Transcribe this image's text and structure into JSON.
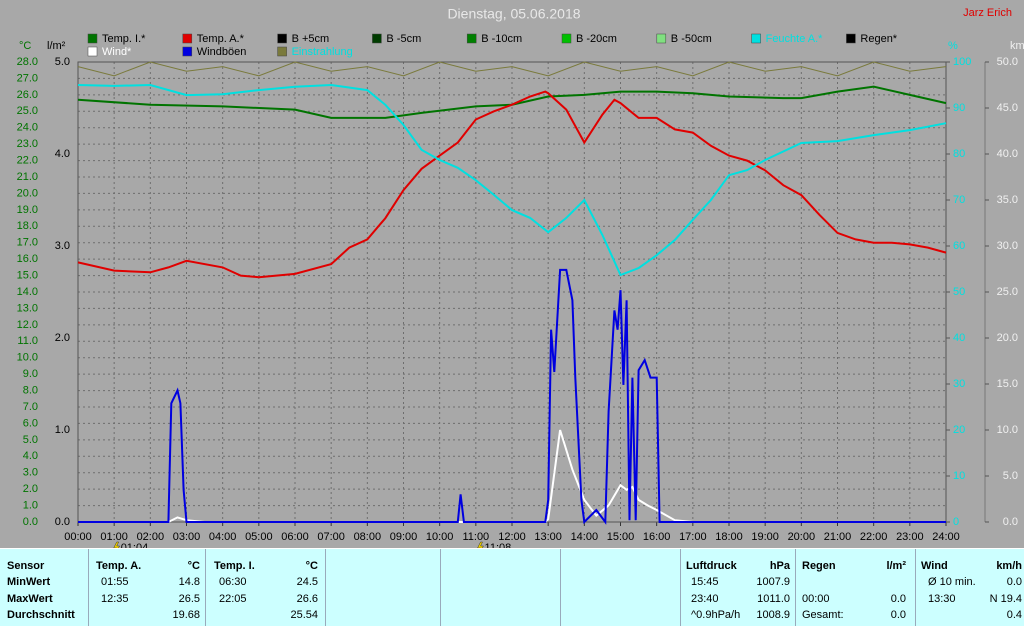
{
  "chart_data": {
    "type": "line",
    "title": "Dienstag, 05.06.2018",
    "author": "Jarz Erich",
    "y_label": "°C",
    "y2_label": "l/m²",
    "y3_label": "%",
    "y4_label": "km/h",
    "xlim": [
      0,
      24
    ],
    "xticks": [
      {
        "value": 0,
        "label": "00:00"
      },
      {
        "value": 1,
        "label": "01:00"
      },
      {
        "value": 2,
        "label": "02:00"
      },
      {
        "value": 3,
        "label": "03:00"
      },
      {
        "value": 4,
        "label": "04:00"
      },
      {
        "value": 5,
        "label": "05:00"
      },
      {
        "value": 6,
        "label": "06:00"
      },
      {
        "value": 7,
        "label": "07:00"
      },
      {
        "value": 8,
        "label": "08:00"
      },
      {
        "value": 9,
        "label": "09:00"
      },
      {
        "value": 10,
        "label": "10:00"
      },
      {
        "value": 11,
        "label": "11:00"
      },
      {
        "value": 12,
        "label": "12:00"
      },
      {
        "value": 13,
        "label": "13:00"
      },
      {
        "value": 14,
        "label": "14:00"
      },
      {
        "value": 15,
        "label": "15:00"
      },
      {
        "value": 16,
        "label": "16:00"
      },
      {
        "value": 17,
        "label": "17:00"
      },
      {
        "value": 18,
        "label": "18:00"
      },
      {
        "value": 19,
        "label": "19:00"
      },
      {
        "value": 20,
        "label": "20:00"
      },
      {
        "value": 21,
        "label": "21:00"
      },
      {
        "value": 22,
        "label": "22:00"
      },
      {
        "value": 23,
        "label": "23:00"
      },
      {
        "value": 24,
        "label": "24:00"
      }
    ],
    "ylim": [
      0,
      28
    ],
    "yticks": [
      {
        "value": 0,
        "label": "0.0"
      },
      {
        "value": 1,
        "label": "1.0"
      },
      {
        "value": 2,
        "label": "2.0"
      },
      {
        "value": 3,
        "label": "3.0"
      },
      {
        "value": 4,
        "label": "4.0"
      },
      {
        "value": 5,
        "label": "5.0"
      },
      {
        "value": 6,
        "label": "6.0"
      },
      {
        "value": 7,
        "label": "7.0"
      },
      {
        "value": 8,
        "label": "8.0"
      },
      {
        "value": 9,
        "label": "9.0"
      },
      {
        "value": 10,
        "label": "10.0"
      },
      {
        "value": 11,
        "label": "11.0"
      },
      {
        "value": 12,
        "label": "12.0"
      },
      {
        "value": 13,
        "label": "13.0"
      },
      {
        "value": 14,
        "label": "14.0"
      },
      {
        "value": 15,
        "label": "15.0"
      },
      {
        "value": 16,
        "label": "16.0"
      },
      {
        "value": 17,
        "label": "17.0"
      },
      {
        "value": 18,
        "label": "18.0"
      },
      {
        "value": 19,
        "label": "19.0"
      },
      {
        "value": 20,
        "label": "20.0"
      },
      {
        "value": 21,
        "label": "21.0"
      },
      {
        "value": 22,
        "label": "22.0"
      },
      {
        "value": 23,
        "label": "23.0"
      },
      {
        "value": 24,
        "label": "24.0"
      },
      {
        "value": 25,
        "label": "25.0"
      },
      {
        "value": 26,
        "label": "26.0"
      },
      {
        "value": 27,
        "label": "27.0"
      },
      {
        "value": 28,
        "label": "28.0"
      }
    ],
    "y2lim": [
      0,
      5
    ],
    "y2ticks": [
      {
        "value": 0,
        "label": "0.0"
      },
      {
        "value": 1,
        "label": "1.0"
      },
      {
        "value": 2,
        "label": "2.0"
      },
      {
        "value": 3,
        "label": "3.0"
      },
      {
        "value": 4,
        "label": "4.0"
      },
      {
        "value": 5,
        "label": "5.0"
      }
    ],
    "y3lim": [
      0,
      100
    ],
    "y3ticks": [
      0,
      10,
      20,
      30,
      40,
      50,
      60,
      70,
      80,
      90,
      100
    ],
    "y4lim": [
      0,
      50
    ],
    "y4ticks": [
      {
        "value": 0,
        "label": "0.0"
      },
      {
        "value": 5,
        "label": "5.0"
      },
      {
        "value": 10,
        "label": "10.0"
      },
      {
        "value": 15,
        "label": "15.0"
      },
      {
        "value": 20,
        "label": "20.0"
      },
      {
        "value": 25,
        "label": "25.0"
      },
      {
        "value": 30,
        "label": "30.0"
      },
      {
        "value": 35,
        "label": "35.0"
      },
      {
        "value": 40,
        "label": "40.0"
      },
      {
        "value": 45,
        "label": "45.0"
      },
      {
        "value": 50,
        "label": "50.0"
      }
    ],
    "grid": true,
    "series": [
      {
        "name": "Temp. I.*",
        "color": "#007400",
        "axis": "y",
        "x": [
          0,
          2,
          4,
          6,
          7,
          8.5,
          9.5,
          11,
          12,
          13,
          14,
          15,
          16,
          17,
          18,
          19.5,
          20,
          21,
          22,
          23,
          24
        ],
        "values": [
          25.7,
          25.4,
          25.3,
          25.1,
          24.6,
          24.6,
          24.9,
          25.3,
          25.4,
          25.9,
          26.0,
          26.2,
          26.2,
          26.1,
          25.9,
          25.8,
          25.8,
          26.2,
          26.5,
          26.0,
          25.5
        ]
      },
      {
        "name": "Temp. A.*",
        "color": "#e00000",
        "axis": "y",
        "x": [
          0,
          1,
          2,
          2.5,
          3,
          4,
          4.5,
          5,
          6,
          7,
          7.5,
          8,
          8.5,
          9,
          9.5,
          10,
          10.5,
          11,
          11.5,
          12,
          12.5,
          12.92,
          13,
          13.5,
          14,
          14.5,
          14.83,
          15,
          15.5,
          16,
          16.5,
          17,
          17.5,
          18,
          18.5,
          19,
          19.5,
          20,
          20.5,
          21,
          21.5,
          22,
          22.5,
          23,
          23.5,
          24
        ],
        "values": [
          15.8,
          15.3,
          15.2,
          15.5,
          15.9,
          15.5,
          15.0,
          14.9,
          15.1,
          15.7,
          16.7,
          17.2,
          18.5,
          20.2,
          21.5,
          22.3,
          23.1,
          24.5,
          25.0,
          25.4,
          25.9,
          26.2,
          26.1,
          25.1,
          23.1,
          24.8,
          25.7,
          25.5,
          24.6,
          24.6,
          23.9,
          23.7,
          22.9,
          22.3,
          22.0,
          21.4,
          20.5,
          19.9,
          18.7,
          17.6,
          17.2,
          17.0,
          17.0,
          16.9,
          16.7,
          16.4
        ]
      },
      {
        "name": "B +5cm",
        "color": "#000000"
      },
      {
        "name": "B -5cm",
        "color": "#003c00"
      },
      {
        "name": "B -10cm",
        "color": "#008000"
      },
      {
        "name": "B -20cm",
        "color": "#00c000"
      },
      {
        "name": "B -50cm",
        "color": "#80e080"
      },
      {
        "name": "Feuchte A.*",
        "color": "#00e0e0",
        "label_color": "#00e0e0",
        "axis": "y3",
        "x": [
          0,
          1,
          2,
          3,
          4,
          5,
          6,
          7,
          8,
          8.5,
          9,
          9.5,
          10,
          10.5,
          11,
          11.5,
          12,
          12.5,
          13,
          13.5,
          14,
          14.5,
          15,
          15.5,
          16,
          16.5,
          17,
          17.5,
          18,
          18.5,
          19,
          20,
          21,
          22,
          23,
          24
        ],
        "values": [
          95,
          94.8,
          95,
          92.8,
          93,
          93.9,
          94.6,
          95,
          93.9,
          90.7,
          86.3,
          80.9,
          78.7,
          77,
          74.3,
          71.1,
          67.8,
          66.1,
          63,
          66.1,
          70,
          62.4,
          53.7,
          55.2,
          58,
          61.3,
          65.7,
          70,
          75.4,
          76.5,
          78.7,
          82.4,
          82.8,
          84.1,
          85.2,
          86.7
        ]
      },
      {
        "name": "Regen*",
        "color": "#000000"
      },
      {
        "name": "Wind*",
        "color": "#ffffff",
        "label_color": "#ffffff",
        "axis": "y4",
        "x": [
          0,
          2.5,
          2.75,
          3,
          3.5,
          12.92,
          13,
          13.33,
          13.67,
          14,
          14.33,
          14.67,
          15,
          15.17,
          15.33,
          15.5,
          15.75,
          16,
          16.5,
          17,
          24
        ],
        "values": [
          0,
          0,
          0.5,
          0.2,
          0,
          0,
          0.3,
          10,
          5.7,
          2.4,
          0.7,
          1.8,
          4.0,
          3.5,
          3.8,
          2.4,
          1.8,
          1.3,
          0.2,
          0,
          0
        ]
      },
      {
        "name": "Windböen",
        "color": "#0000e0",
        "axis": "y4",
        "x": [
          0,
          2.5,
          2.58,
          2.75,
          2.83,
          2.92,
          3,
          10.5,
          10.58,
          10.67,
          12.92,
          13,
          13.08,
          13.17,
          13.33,
          13.5,
          13.67,
          13.75,
          13.92,
          14,
          14.33,
          14.58,
          14.67,
          14.83,
          14.92,
          15,
          15.08,
          15.17,
          15.25,
          15.33,
          15.42,
          15.5,
          15.67,
          15.83,
          16,
          16.08,
          24
        ],
        "values": [
          0,
          0,
          12.9,
          14.3,
          12.9,
          3.5,
          0,
          0,
          3.0,
          0,
          0,
          2.4,
          20.9,
          16.3,
          27.4,
          27.4,
          24.1,
          15.7,
          2.4,
          0,
          1.3,
          0,
          12.0,
          23.0,
          20.9,
          25.2,
          14.9,
          24.1,
          0.2,
          15.7,
          0.2,
          16.5,
          17.6,
          15.7,
          15.7,
          0,
          0
        ]
      },
      {
        "name": "Einstrahlung",
        "color": "#7a7a3c",
        "label_color": "#00e0e0",
        "axis": "y3",
        "x": [
          0,
          1,
          2,
          3,
          4,
          5,
          6,
          7,
          8,
          9,
          10,
          11,
          12,
          13,
          14,
          15,
          16,
          17,
          18,
          19,
          20,
          21,
          22,
          23,
          24
        ],
        "values": [
          99,
          97,
          100,
          98,
          99,
          97,
          100,
          98,
          99,
          97,
          100,
          98,
          99,
          97,
          100,
          98,
          99,
          97,
          100,
          98,
          99,
          97,
          100,
          98,
          99
        ]
      }
    ],
    "annotations": [
      {
        "x": 1.07,
        "label": "01:04"
      },
      {
        "x": 11.13,
        "label": "11:08"
      }
    ]
  },
  "table": {
    "rows": [
      [
        "Sensor",
        "Temp. A.",
        "°C",
        "Temp. I.",
        "°C",
        "Luftdruck",
        "hPa",
        "Regen",
        "l/m²",
        "Wind",
        "km/h"
      ],
      [
        "MinWert",
        "01:55",
        "14.8",
        "06:30",
        "24.5",
        "15:45",
        "1007.9",
        null,
        null,
        "Ø 10 min.",
        "0.0"
      ],
      [
        "MaxWert",
        "12:35",
        "26.5",
        "22:05",
        "26.6",
        "23:40",
        "1011.0",
        "00:00",
        "0.0",
        "13:30",
        "N 19.4"
      ],
      [
        "Durchschnitt",
        null,
        "19.68",
        null,
        "25.54",
        "^0.9hPa/h",
        "1008.9",
        "Gesamt:",
        "0.0",
        null,
        "0.4"
      ]
    ]
  }
}
